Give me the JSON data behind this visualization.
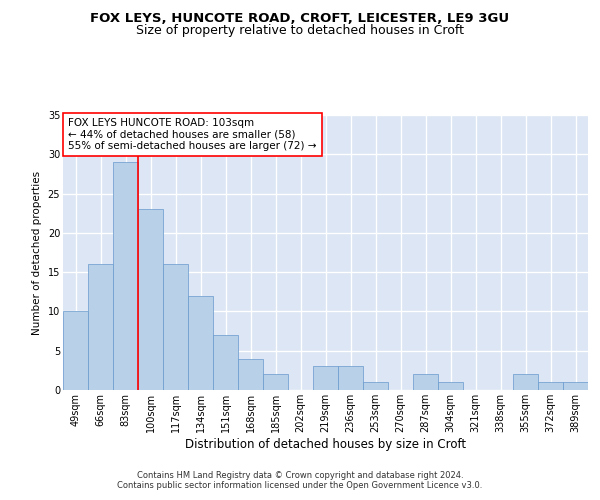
{
  "title1": "FOX LEYS, HUNCOTE ROAD, CROFT, LEICESTER, LE9 3GU",
  "title2": "Size of property relative to detached houses in Croft",
  "xlabel": "Distribution of detached houses by size in Croft",
  "ylabel": "Number of detached properties",
  "categories": [
    "49sqm",
    "66sqm",
    "83sqm",
    "100sqm",
    "117sqm",
    "134sqm",
    "151sqm",
    "168sqm",
    "185sqm",
    "202sqm",
    "219sqm",
    "236sqm",
    "253sqm",
    "270sqm",
    "287sqm",
    "304sqm",
    "321sqm",
    "338sqm",
    "355sqm",
    "372sqm",
    "389sqm"
  ],
  "values": [
    10,
    16,
    29,
    23,
    16,
    12,
    7,
    4,
    2,
    0,
    3,
    3,
    1,
    0,
    2,
    1,
    0,
    0,
    2,
    1,
    1
  ],
  "bar_color": "#b8d0e8",
  "bar_edge_color": "#6699cc",
  "vline_x_index": 3,
  "vline_color": "red",
  "annotation_text": "FOX LEYS HUNCOTE ROAD: 103sqm\n← 44% of detached houses are smaller (58)\n55% of semi-detached houses are larger (72) →",
  "annotation_box_color": "white",
  "annotation_box_edge": "red",
  "ylim": [
    0,
    35
  ],
  "yticks": [
    0,
    5,
    10,
    15,
    20,
    25,
    30,
    35
  ],
  "footer_text": "Contains HM Land Registry data © Crown copyright and database right 2024.\nContains public sector information licensed under the Open Government Licence v3.0.",
  "background_color": "#dce6f5",
  "grid_color": "white",
  "title1_fontsize": 9.5,
  "title2_fontsize": 9,
  "xlabel_fontsize": 8.5,
  "ylabel_fontsize": 7.5,
  "tick_fontsize": 7,
  "annotation_fontsize": 7.5,
  "footer_fontsize": 6
}
